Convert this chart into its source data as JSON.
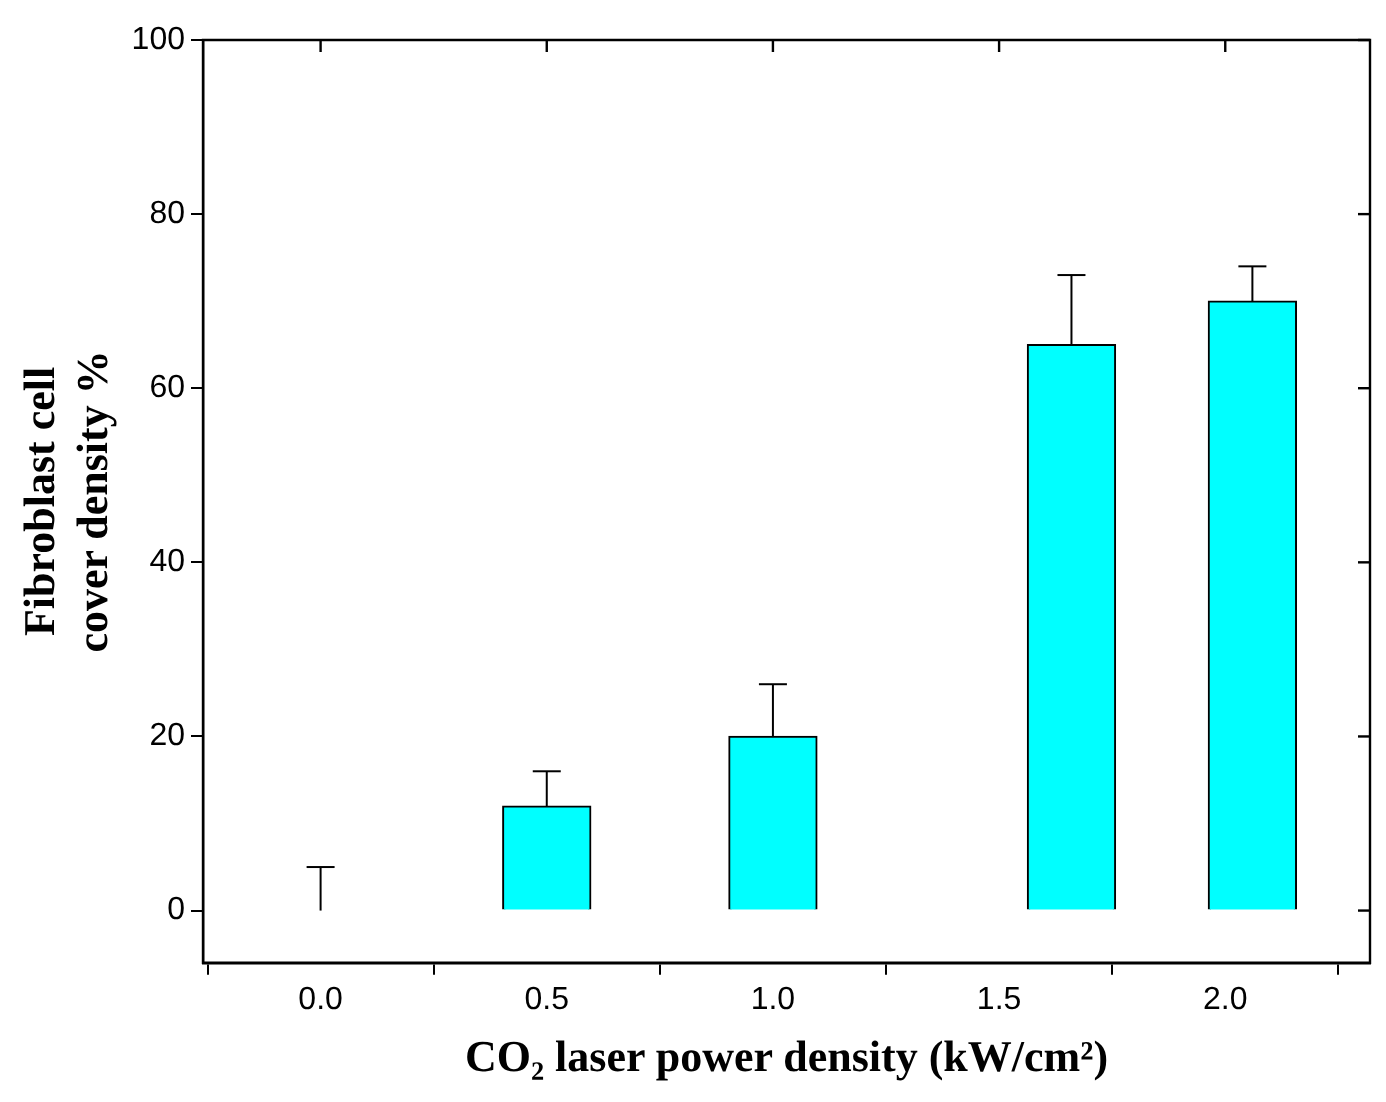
{
  "chart_data": {
    "type": "bar",
    "xlabel": "CO₂ laser power density (kW/cm²)",
    "ylabel": "Fibroblast cell\ncover density %",
    "x": [
      0,
      0.5,
      1.0,
      1.66,
      2.06
    ],
    "values": [
      0,
      12,
      20,
      65,
      70
    ],
    "errors": [
      [
        0,
        5
      ],
      [
        12,
        16
      ],
      [
        20,
        26
      ],
      [
        65,
        73
      ],
      [
        70,
        74
      ]
    ],
    "color": "#00ffff",
    "xlim": [
      -0.26,
      2.32
    ],
    "xticks": [
      {
        "value": 0,
        "label": "0.0"
      },
      {
        "value": 0.5,
        "label": "0.5"
      },
      {
        "value": 1,
        "label": "1.0"
      },
      {
        "value": 1.5,
        "label": "1.5"
      },
      {
        "value": 2,
        "label": "2.0"
      }
    ],
    "ylim": [
      -6,
      100
    ],
    "yticks": [
      0,
      20,
      40,
      60,
      80,
      100
    ],
    "grid": false,
    "legend": false
  }
}
